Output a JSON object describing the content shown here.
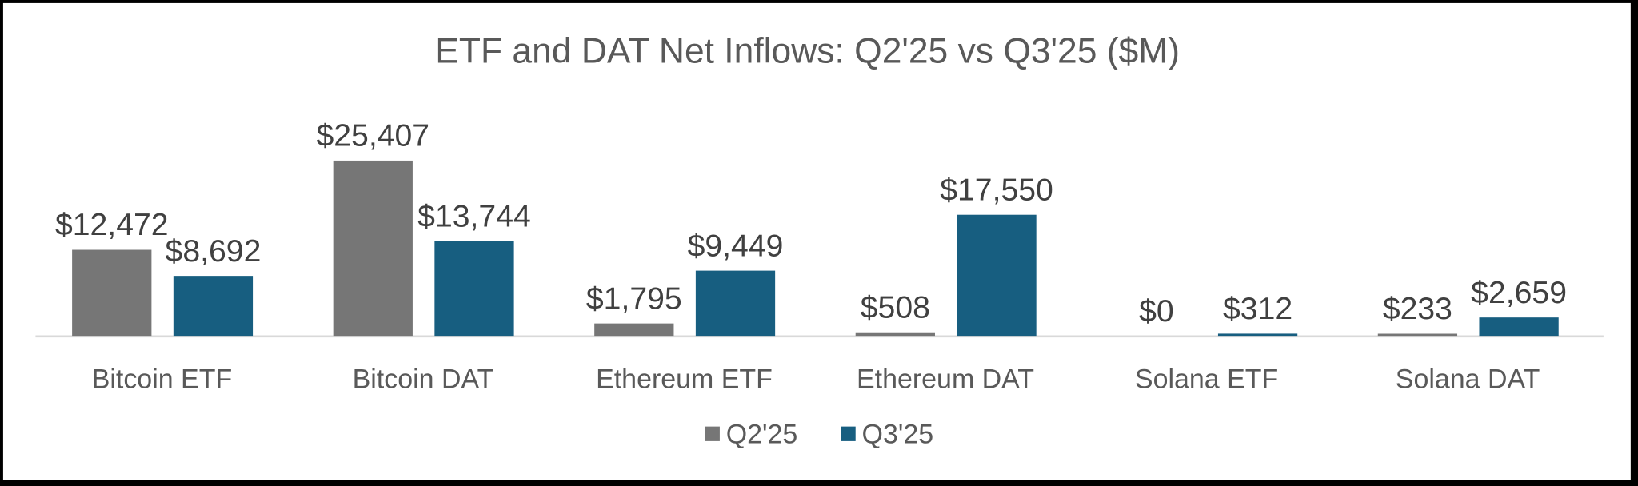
{
  "chart_data": {
    "type": "bar",
    "title": "ETF and DAT Net Inflows: Q2'25 vs Q3'25 ($M)",
    "xlabel": "",
    "ylabel": "",
    "categories": [
      "Bitcoin ETF",
      "Bitcoin DAT",
      "Ethereum ETF",
      "Ethereum DAT",
      "Solana ETF",
      "Solana DAT"
    ],
    "series": [
      {
        "name": "Q2'25",
        "color": "#767676",
        "values": [
          12472,
          25407,
          1795,
          508,
          0,
          233
        ],
        "labels": [
          "$12,472",
          "$25,407",
          "$1,795",
          "$508",
          "$0",
          "$233"
        ]
      },
      {
        "name": "Q3'25",
        "color": "#175e80",
        "values": [
          8692,
          13744,
          9449,
          17550,
          312,
          2659
        ],
        "labels": [
          "$8,692",
          "$13,744",
          "$9,449",
          "$17,550",
          "$312",
          "$2,659"
        ]
      }
    ],
    "ylim": [
      0,
      25407
    ],
    "grid": false,
    "y_axis_visible": false,
    "data_labels": true,
    "legend_position": "bottom"
  }
}
